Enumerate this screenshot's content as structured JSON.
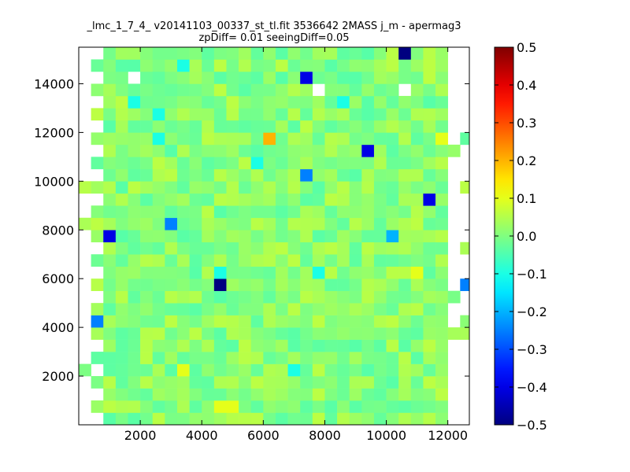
{
  "chart_data": {
    "type": "heatmap",
    "title": "_lmc_1_7_4_ v20141103_00337_st_tl.fit 3536642 2MASS j_m - apermag3",
    "subtitle": "zpDiff= 0.01 seeingDiff=0.05",
    "xlabel": "",
    "ylabel": "",
    "xlim": [
      0,
      12700
    ],
    "ylim": [
      0,
      15500
    ],
    "x_ticks": [
      "2000",
      "4000",
      "6000",
      "8000",
      "10000",
      "12000"
    ],
    "y_ticks": [
      "2000",
      "4000",
      "6000",
      "8000",
      "10000",
      "12000",
      "14000"
    ],
    "colorbar": {
      "colormap": "jet",
      "range": [
        -0.5,
        0.5
      ],
      "ticks": [
        "0.5",
        "0.4",
        "0.3",
        "0.2",
        "0.1",
        "0.0",
        "−0.1",
        "−0.2",
        "−0.3",
        "−0.4",
        "−0.5"
      ]
    },
    "grid": false,
    "x_cell": 400,
    "y_cell": 500,
    "x_bin_centers": [
      200,
      600,
      1000,
      1400,
      1800,
      2200,
      2600,
      3000,
      3400,
      3800,
      4200,
      4600,
      5000,
      5400,
      5800,
      6200,
      6600,
      7000,
      7400,
      7800,
      8200,
      8600,
      9000,
      9400,
      9800,
      10200,
      10600,
      11000,
      11400,
      11800,
      12200,
      12600
    ],
    "y_bin_centers": [
      250,
      750,
      1250,
      1750,
      2250,
      2750,
      3250,
      3750,
      4250,
      4750,
      5250,
      5750,
      6250,
      6750,
      7250,
      7750,
      8250,
      8750,
      9250,
      9750,
      10250,
      10750,
      11250,
      11750,
      12250,
      12750,
      13250,
      13750,
      14250,
      14750,
      15250
    ],
    "outliers": [
      {
        "x": 10600,
        "y": 15250,
        "value": -0.5
      },
      {
        "x": 3400,
        "y": 14750,
        "value": -0.1
      },
      {
        "x": 7400,
        "y": 14250,
        "value": -0.4
      },
      {
        "x": 1800,
        "y": 13250,
        "value": -0.1
      },
      {
        "x": 8600,
        "y": 13250,
        "value": -0.1
      },
      {
        "x": 2600,
        "y": 12750,
        "value": -0.1
      },
      {
        "x": 6200,
        "y": 11750,
        "value": 0.2
      },
      {
        "x": 2600,
        "y": 11750,
        "value": -0.1
      },
      {
        "x": 11800,
        "y": 11750,
        "value": 0.1
      },
      {
        "x": 9400,
        "y": 11250,
        "value": -0.4
      },
      {
        "x": 5800,
        "y": 10750,
        "value": -0.1
      },
      {
        "x": 7400,
        "y": 10250,
        "value": -0.25
      },
      {
        "x": 11400,
        "y": 9250,
        "value": -0.4
      },
      {
        "x": 3000,
        "y": 8250,
        "value": -0.25
      },
      {
        "x": 1000,
        "y": 7750,
        "value": -0.4
      },
      {
        "x": 10200,
        "y": 7750,
        "value": -0.2
      },
      {
        "x": 7800,
        "y": 6250,
        "value": -0.1
      },
      {
        "x": 4600,
        "y": 6250,
        "value": -0.1
      },
      {
        "x": 11000,
        "y": 6250,
        "value": 0.1
      },
      {
        "x": 4600,
        "y": 5750,
        "value": -0.5
      },
      {
        "x": 12600,
        "y": 5750,
        "value": -0.25
      },
      {
        "x": 600,
        "y": 4250,
        "value": -0.25
      },
      {
        "x": 3400,
        "y": 2250,
        "value": 0.1
      },
      {
        "x": 7000,
        "y": 2250,
        "value": -0.1
      },
      {
        "x": 4600,
        "y": 750,
        "value": 0.1
      },
      {
        "x": 5000,
        "y": 750,
        "value": 0.1
      }
    ],
    "empty_cells": [
      {
        "x": 1800,
        "y": 14250
      },
      {
        "x": 7800,
        "y": 13750
      },
      {
        "x": 10600,
        "y": 13750
      }
    ]
  }
}
